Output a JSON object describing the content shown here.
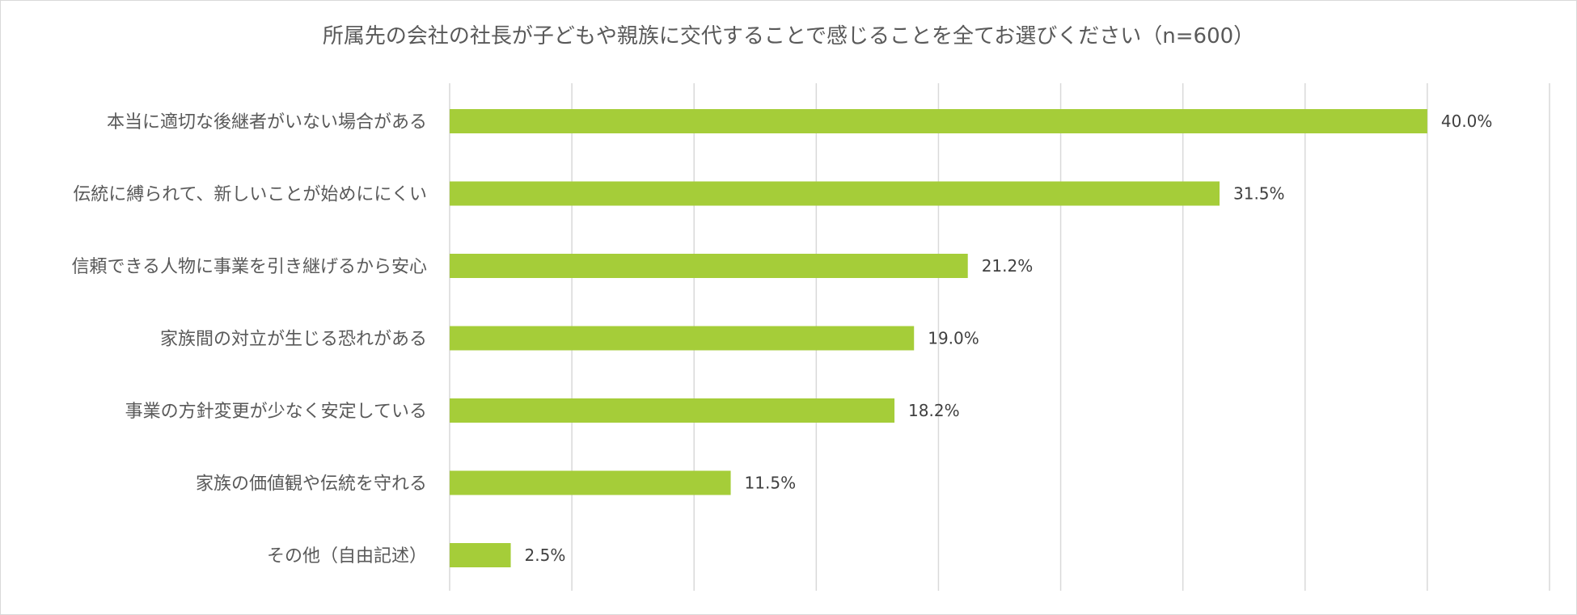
{
  "chart_data": {
    "type": "bar",
    "orientation": "horizontal",
    "title": "所属先の会社の社長が子どもや親族に交代することで感じることを全てお選びください（n=600）",
    "categories": [
      "本当に適切な後継者がいない場合がある",
      "伝統に縛られて、新しいことが始めににくい",
      "信頼できる人物に事業を引き継げるから安心",
      "家族間の対立が生じる恐れがある",
      "事業の方針変更が少なく安定している",
      "家族の価値観や伝統を守れる",
      "その他（自由記述）"
    ],
    "values": [
      40.0,
      31.5,
      21.2,
      19.0,
      18.2,
      11.5,
      2.5
    ],
    "value_labels": [
      "40.0%",
      "31.5%",
      "21.2%",
      "19.0%",
      "18.2%",
      "11.5%",
      "2.5%"
    ],
    "xlim": [
      0,
      45
    ],
    "grid": true,
    "bar_color": "#a5cd39",
    "grid_color": "#d9d9d9"
  }
}
